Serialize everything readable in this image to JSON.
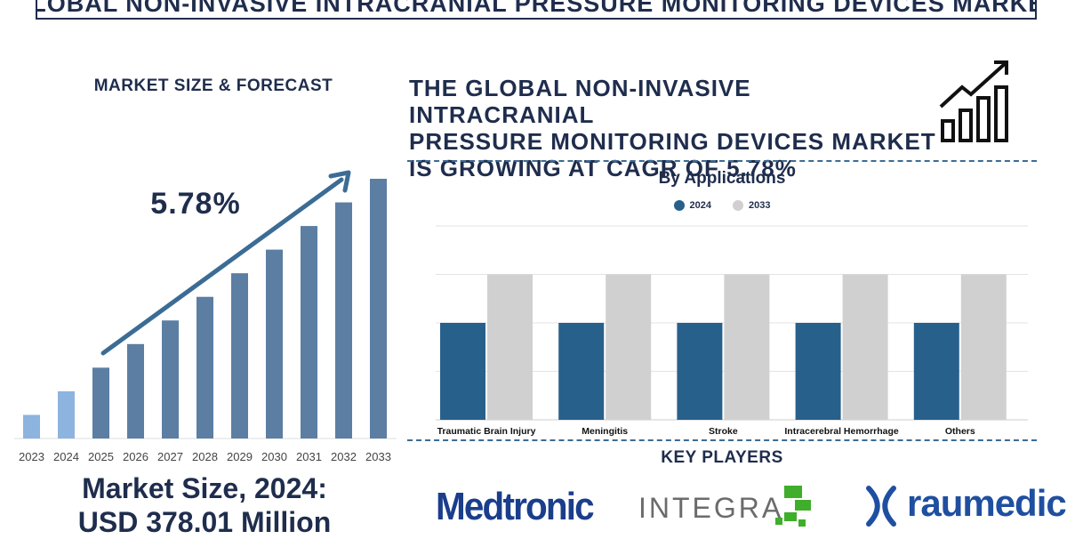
{
  "header": {
    "title": "GLOBAL NON-INVASIVE INTRACRANIAL PRESSURE MONITORING DEVICES MARKET"
  },
  "forecast": {
    "subtitle": "MARKET SIZE & FORECAST",
    "cagr_label": "5.78%",
    "market_size_line1": "Market Size, 2024:",
    "market_size_line2": "USD 378.01 Million"
  },
  "headline": {
    "line1": "THE GLOBAL NON-INVASIVE INTRACRANIAL",
    "line2": "PRESSURE MONITORING DEVICES MARKET",
    "line3": "IS GROWING AT CAGR OF 5.78%"
  },
  "applications": {
    "title": "By Applications"
  },
  "key_players": {
    "title": "KEY PLAYERS",
    "logos": [
      "Medtronic",
      "INTEGRA",
      "raumedic"
    ]
  },
  "colors": {
    "navy": "#1f2d4d",
    "bar_2024": "#28608c",
    "bar_2033": "#d0d0d0",
    "forecast_light": "#8cb4de",
    "forecast_dark": "#5c7ea3",
    "arrow": "#3b6c95"
  },
  "chart_data": [
    {
      "type": "bar",
      "title": "MARKET SIZE & FORECAST",
      "categories": [
        "2023",
        "2024",
        "2025",
        "2026",
        "2027",
        "2028",
        "2029",
        "2030",
        "2031",
        "2032",
        "2033"
      ],
      "values": [
        1,
        2,
        3,
        4,
        5,
        6,
        7,
        8,
        9,
        10,
        11
      ],
      "annotation": "5.78%",
      "xlabel": "",
      "ylabel": "",
      "ylim": [
        0,
        11
      ]
    },
    {
      "type": "bar",
      "title": "By Applications",
      "categories": [
        "Traumatic Brain Injury",
        "Meningitis",
        "Stroke",
        "Intracerebral Hemorrhage",
        "Others"
      ],
      "series": [
        {
          "name": "2024",
          "values": [
            2,
            2,
            2,
            2,
            2
          ]
        },
        {
          "name": "2033",
          "values": [
            3,
            3,
            3,
            3,
            3
          ]
        }
      ],
      "ylim": [
        0,
        4
      ],
      "grid": true,
      "legend": "top-center"
    }
  ]
}
